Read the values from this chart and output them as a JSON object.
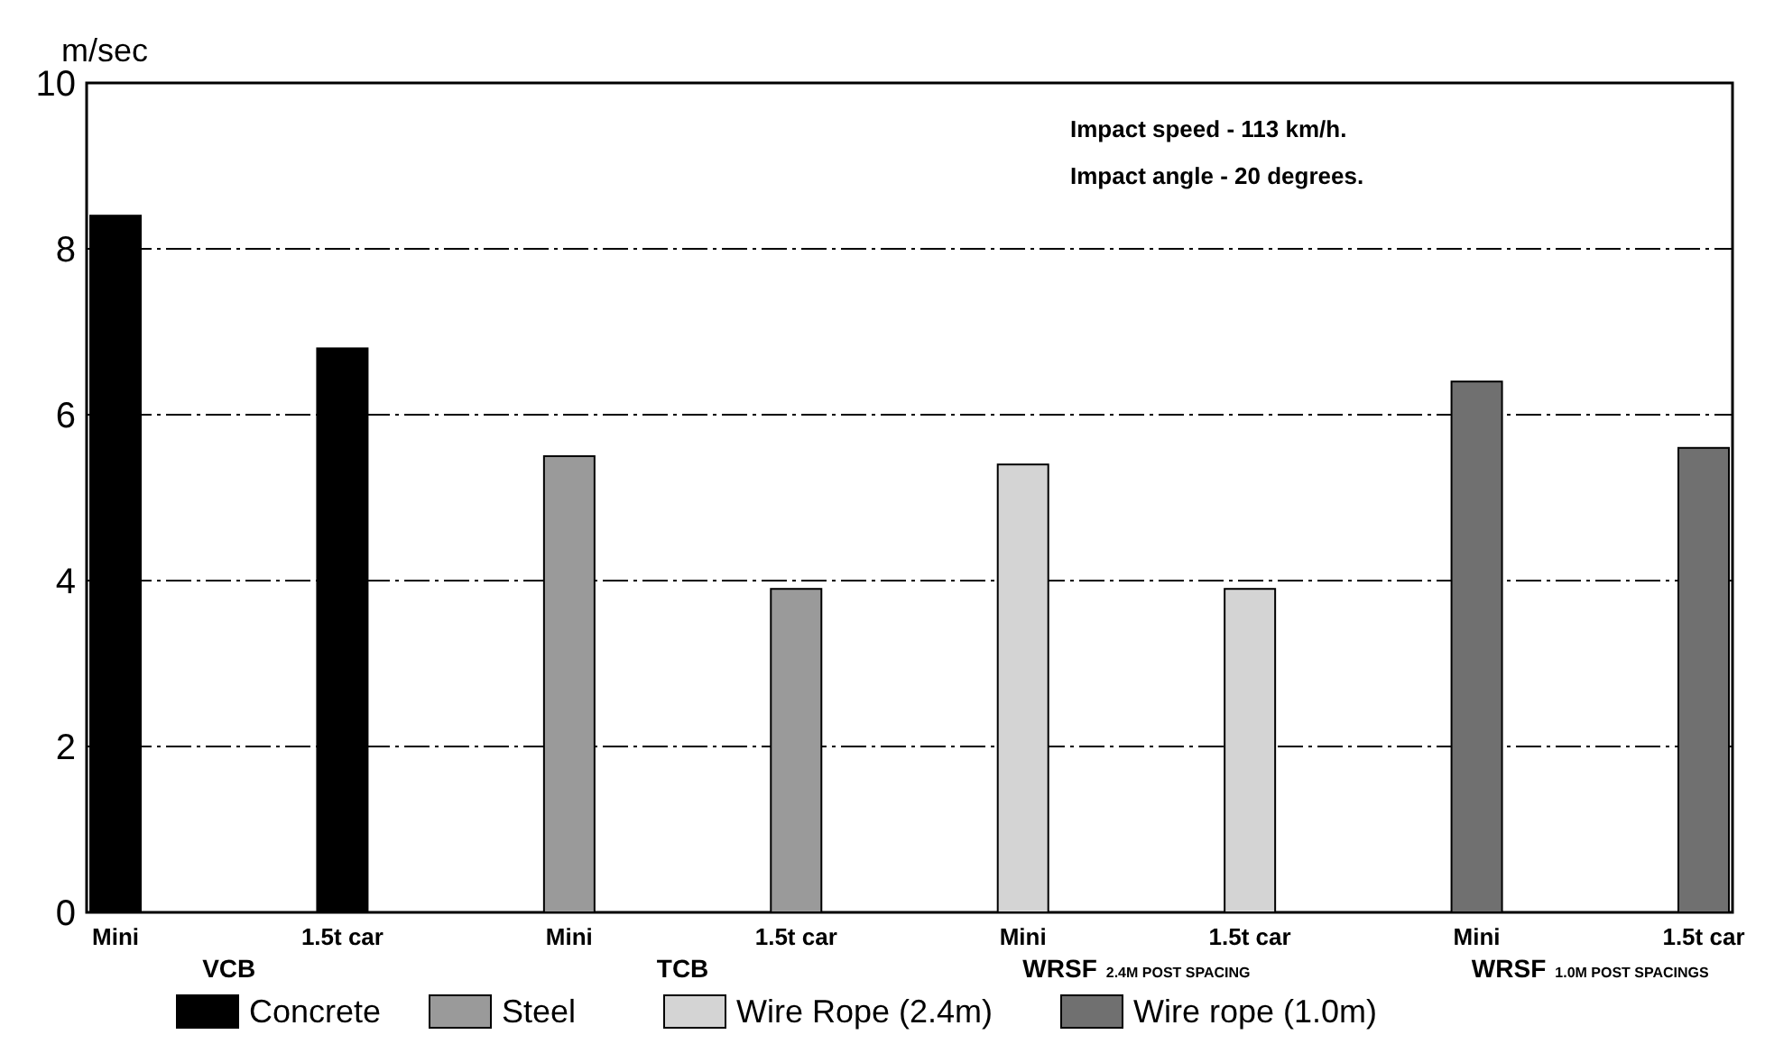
{
  "chart_data": {
    "type": "bar",
    "ylabel": "m/sec",
    "categories": [
      "Mini",
      "1.5t car",
      "Mini",
      "1.5t car",
      "Mini",
      "1.5t car",
      "Mini",
      "1.5t car"
    ],
    "series": [
      {
        "name": "Concrete",
        "color": "#000000",
        "values": [
          8.4,
          6.8,
          null,
          null,
          null,
          null,
          null,
          null
        ]
      },
      {
        "name": "Steel",
        "color": "#9a9a9a",
        "values": [
          null,
          null,
          5.5,
          3.9,
          null,
          null,
          null,
          null
        ]
      },
      {
        "name": "Wire Rope (2.4m)",
        "color": "#d4d4d4",
        "values": [
          null,
          null,
          null,
          null,
          5.4,
          3.9,
          null,
          null
        ]
      },
      {
        "name": "Wire rope (1.0m)",
        "color": "#707070",
        "values": [
          null,
          null,
          null,
          null,
          null,
          null,
          6.4,
          5.6
        ]
      }
    ],
    "ylim": [
      0,
      10
    ],
    "yticks": [
      0,
      2,
      4,
      6,
      8,
      10
    ],
    "grid": "y",
    "legend": "bottom",
    "annotations": [
      "Impact speed - 113 km/h.",
      "Impact angle - 20 degrees.",
      "VCB",
      "TCB",
      "WRSF 2.4M POST SPACING",
      "WRSF 1.0M POST SPACINGS"
    ]
  }
}
